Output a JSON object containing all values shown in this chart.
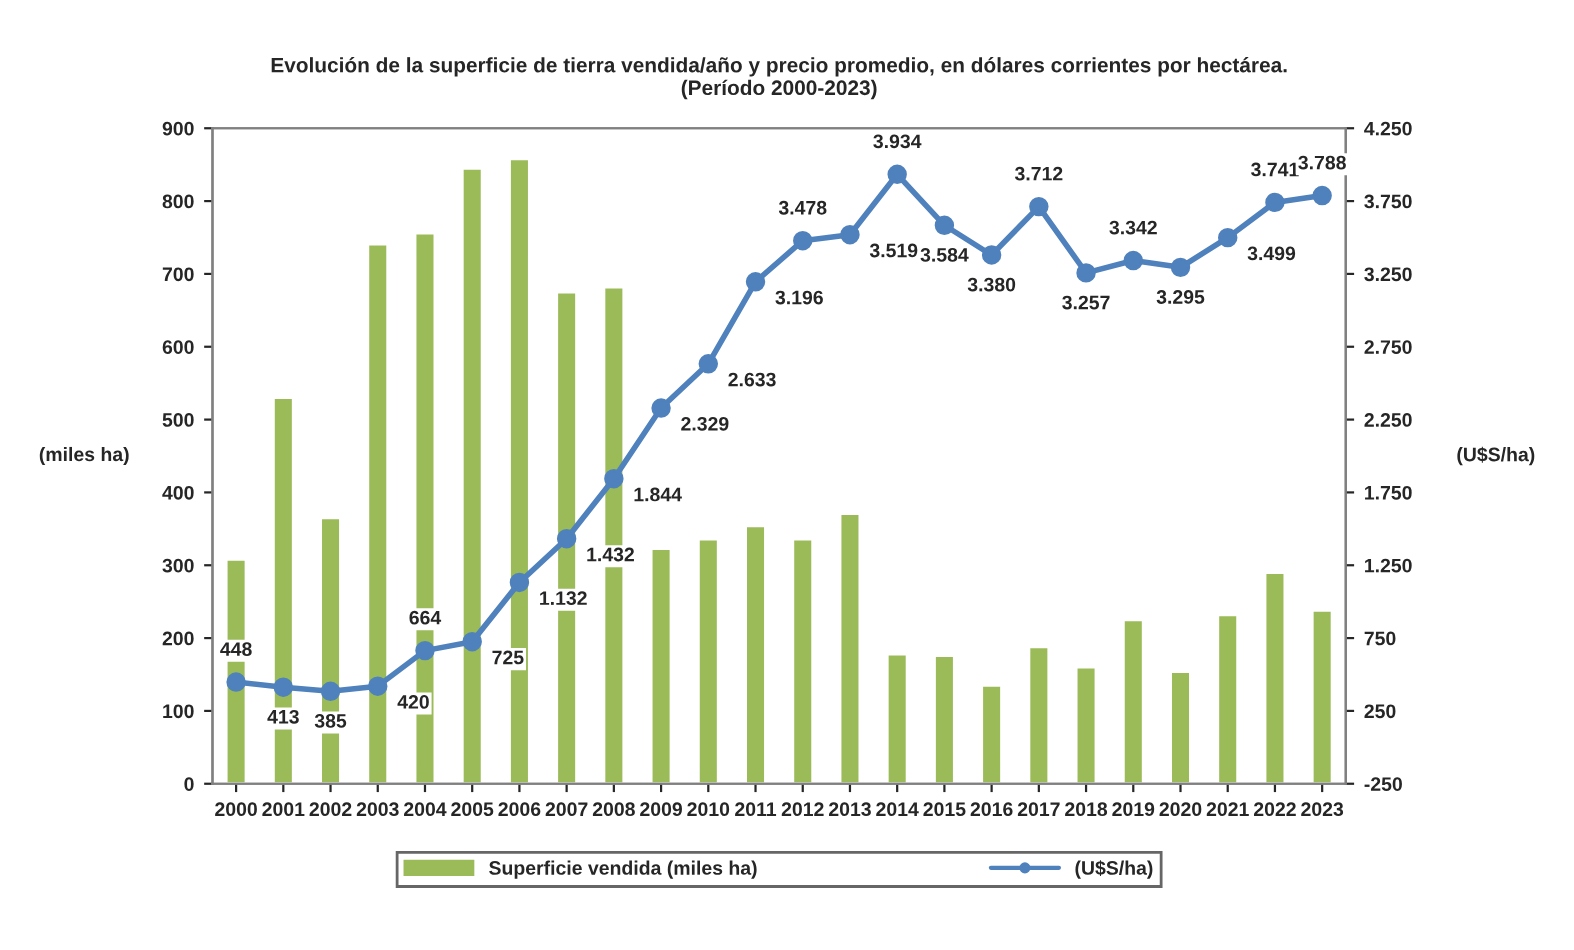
{
  "chart_data": {
    "type": "bar",
    "title": "Evolución de la superficie de tierra vendida/año y precio promedio, en dólares corrientes por hectárea.\n(Período 2000-2023)",
    "categories": [
      "2000",
      "2001",
      "2002",
      "2003",
      "2004",
      "2005",
      "2006",
      "2007",
      "2008",
      "2009",
      "2010",
      "2011",
      "2012",
      "2013",
      "2014",
      "2015",
      "2016",
      "2017",
      "2018",
      "2019",
      "2020",
      "2021",
      "2022",
      "2023"
    ],
    "series": [
      {
        "name": "Superficie vendida (miles ha)",
        "color": "#9bbb59",
        "values": [
          308,
          530,
          365,
          741,
          756,
          845,
          858,
          675,
          682,
          323,
          336,
          354,
          336,
          371,
          178,
          176,
          135,
          188,
          160,
          225,
          154,
          232,
          290,
          238
        ]
      },
      {
        "name": "(U$S/ha)",
        "type": "line",
        "axis": "y2",
        "color": "#4f81bd",
        "marker": "circle",
        "values": [
          448,
          413,
          385,
          420,
          664,
          725,
          1132,
          1432,
          1844,
          2329,
          2633,
          3196,
          3478,
          3519,
          3934,
          3584,
          3380,
          3712,
          3257,
          3342,
          3295,
          3499,
          3741,
          3788
        ],
        "value_labels": [
          "448",
          "413",
          "385",
          "420",
          "664",
          "725",
          "1.132",
          "1.432",
          "1.844",
          "2.329",
          "2.633",
          "3.196",
          "3.478",
          "3.519",
          "3.934",
          "3.584",
          "3.380",
          "3.712",
          "3.257",
          "3.342",
          "3.295",
          "3.499",
          "3.741",
          "3.788"
        ]
      }
    ],
    "ylabel": "(miles ha)",
    "y2label": "(U$S/ha)",
    "ylim": [
      0,
      900
    ],
    "yticks": [
      0,
      100,
      200,
      300,
      400,
      500,
      600,
      700,
      800,
      900
    ],
    "y2lim": [
      -250,
      4250
    ],
    "y2ticks": [
      -250,
      250,
      750,
      {
        "value": 1250,
        "label": "1.250"
      },
      {
        "value": 1750,
        "label": "1.750"
      },
      {
        "value": 2250,
        "label": "2.250"
      },
      {
        "value": 2750,
        "label": "2.750"
      },
      {
        "value": 3250,
        "label": "3.250"
      },
      {
        "value": 3750,
        "label": "3.750"
      },
      {
        "value": 4250,
        "label": "4.250"
      }
    ],
    "legend": "bottom",
    "grid": false
  }
}
